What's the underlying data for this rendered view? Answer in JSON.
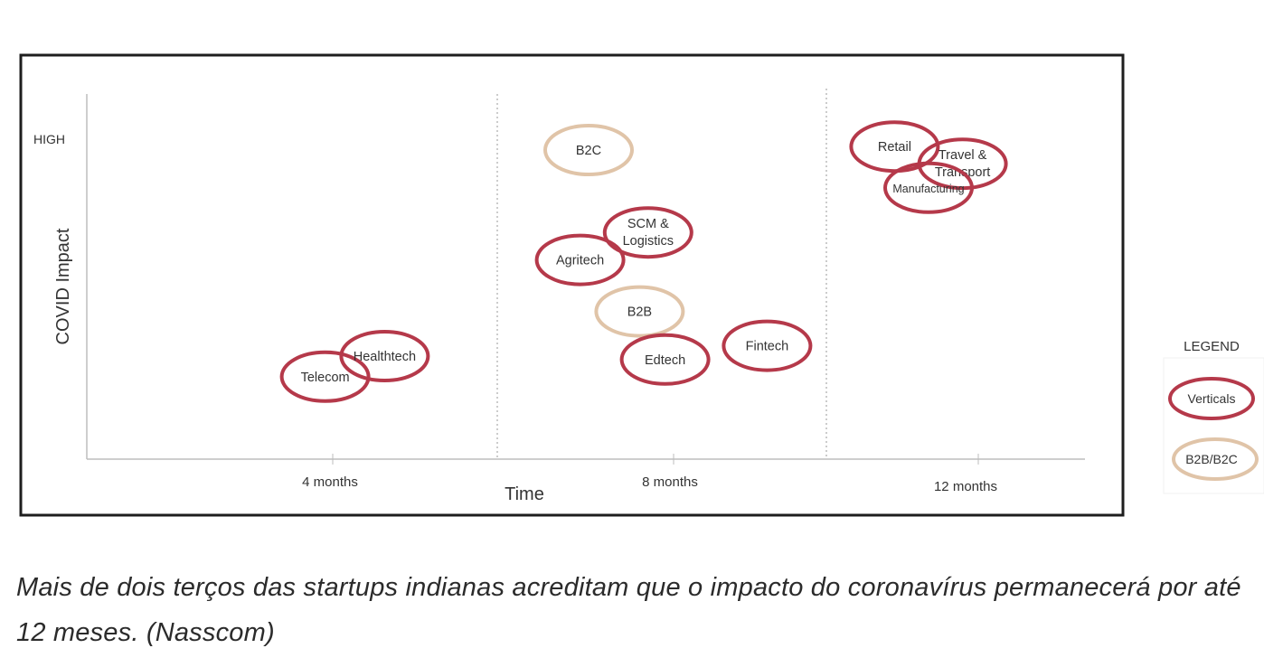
{
  "chart_data": {
    "type": "scatter",
    "xlabel": "Time",
    "ylabel": "COVID Impact",
    "x_ticks": [
      "4 months",
      "8 months",
      "12 months"
    ],
    "y_ticks": [
      "HIGH"
    ],
    "grid": "vertical dotted separators",
    "legend": {
      "title": "LEGEND",
      "placement": "right",
      "entries": [
        {
          "label": "Verticals",
          "color": "#b5394a"
        },
        {
          "label": "B2B/B2C",
          "color": "#e0c4a8"
        }
      ]
    },
    "points": [
      {
        "label": "Telecom",
        "group": "Verticals",
        "x": 3.9,
        "y": 2.4
      },
      {
        "label": "Healthtech",
        "group": "Verticals",
        "x": 4.6,
        "y": 3.0
      },
      {
        "label": "B2C",
        "group": "B2B/B2C",
        "x": 7.0,
        "y": 9.0
      },
      {
        "label": "SCM & Logistics",
        "group": "Verticals",
        "x": 7.7,
        "y": 6.6
      },
      {
        "label": "Agritech",
        "group": "Verticals",
        "x": 6.9,
        "y": 5.8
      },
      {
        "label": "B2B",
        "group": "B2B/B2C",
        "x": 7.6,
        "y": 4.3
      },
      {
        "label": "Edtech",
        "group": "Verticals",
        "x": 7.9,
        "y": 2.9
      },
      {
        "label": "Fintech",
        "group": "Verticals",
        "x": 9.1,
        "y": 3.3
      },
      {
        "label": "Retail",
        "group": "Verticals",
        "x": 10.6,
        "y": 9.1
      },
      {
        "label": "Travel & Transport",
        "group": "Verticals",
        "x": 11.4,
        "y": 8.6
      },
      {
        "label": "Manufacturing",
        "group": "Verticals",
        "x": 11.0,
        "y": 7.9
      }
    ]
  },
  "caption": "Mais de dois terços das startups indianas acreditam que o impacto do coronavírus permanecerá por até 12 meses. (Nasscom)"
}
